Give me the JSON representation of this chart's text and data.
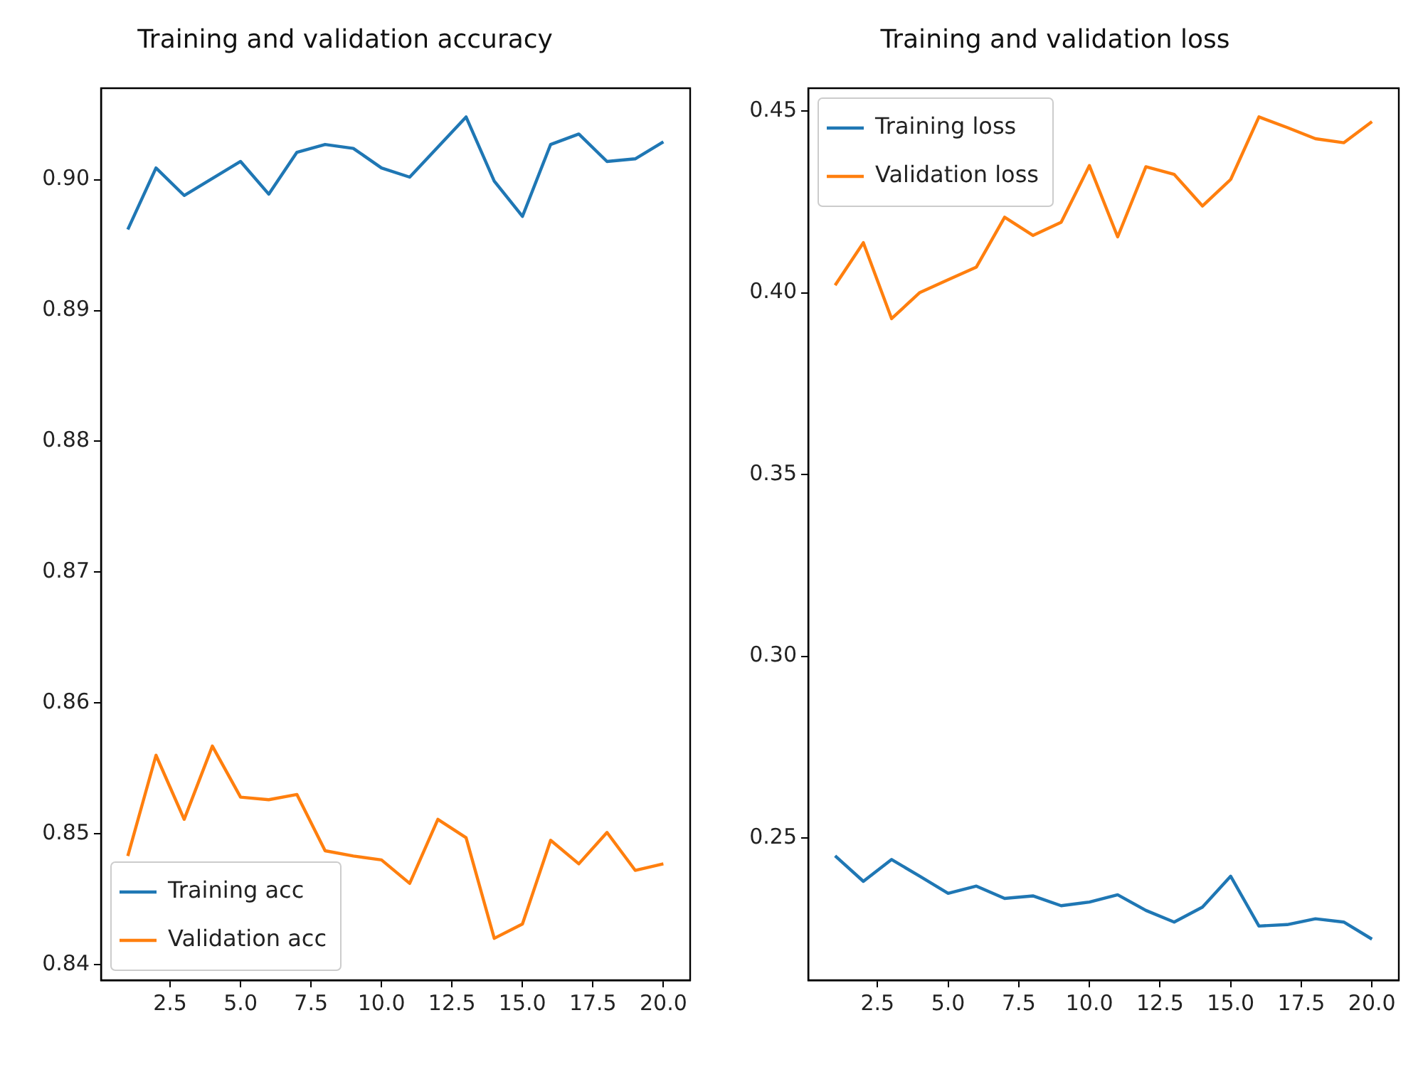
{
  "chart_data": [
    {
      "type": "line",
      "title": "Training and validation accuracy",
      "x": [
        1,
        2,
        3,
        4,
        5,
        6,
        7,
        8,
        9,
        10,
        11,
        12,
        13,
        14,
        15,
        16,
        17,
        18,
        19,
        20
      ],
      "xlim": [
        0.05,
        20.95
      ],
      "xticks": [
        2.5,
        {
          "value": 5,
          "label": "5.0"
        },
        7.5,
        {
          "value": 10,
          "label": "10.0"
        },
        12.5,
        {
          "value": 15,
          "label": "15.0"
        },
        17.5,
        {
          "value": 20,
          "label": "20.0"
        }
      ],
      "ylim": [
        0.8388,
        0.907
      ],
      "yticks": [
        0.84,
        0.85,
        0.86,
        0.87,
        0.88,
        0.89,
        {
          "value": 0.9,
          "label": "0.90"
        }
      ],
      "grid": false,
      "legend": "lower left",
      "series": [
        {
          "name": "Training acc",
          "color": "#1f77b4",
          "values": [
            0.8962,
            0.9009,
            0.8988,
            0.9001,
            0.9014,
            0.8989,
            0.9021,
            0.9027,
            0.9024,
            0.9009,
            0.9002,
            0.9025,
            0.9048,
            0.8999,
            0.8972,
            0.9027,
            0.9035,
            0.9014,
            0.9016,
            0.9029
          ]
        },
        {
          "name": "Validation acc",
          "color": "#ff7f0e",
          "values": [
            0.8483,
            0.856,
            0.8511,
            0.8567,
            0.8528,
            0.8526,
            0.853,
            0.8487,
            0.8483,
            0.848,
            0.8462,
            0.8511,
            0.8497,
            0.842,
            0.8431,
            0.8495,
            0.8477,
            0.8501,
            0.8472,
            0.8477
          ]
        }
      ]
    },
    {
      "type": "line",
      "title": "Training and validation loss",
      "x": [
        1,
        2,
        3,
        4,
        5,
        6,
        7,
        8,
        9,
        10,
        11,
        12,
        13,
        14,
        15,
        16,
        17,
        18,
        19,
        20
      ],
      "xlim": [
        0.05,
        20.95
      ],
      "xticks": [
        2.5,
        {
          "value": 5,
          "label": "5.0"
        },
        7.5,
        {
          "value": 10,
          "label": "10.0"
        },
        12.5,
        {
          "value": 15,
          "label": "15.0"
        },
        17.5,
        {
          "value": 20,
          "label": "20.0"
        }
      ],
      "ylim": [
        0.2109,
        0.4563
      ],
      "yticks": [
        0.25,
        {
          "value": 0.3,
          "label": "0.30"
        },
        0.35,
        {
          "value": 0.4,
          "label": "0.40"
        },
        0.45
      ],
      "grid": false,
      "legend": "upper left",
      "series": [
        {
          "name": "Training loss",
          "color": "#1f77b4",
          "values": [
            0.2451,
            0.2381,
            0.2441,
            0.2395,
            0.2348,
            0.2368,
            0.2334,
            0.2341,
            0.2314,
            0.2324,
            0.2344,
            0.2301,
            0.2269,
            0.231,
            0.2395,
            0.2258,
            0.2262,
            0.2278,
            0.2269,
            0.2222
          ]
        },
        {
          "name": "Validation loss",
          "color": "#ff7f0e",
          "values": [
            0.4021,
            0.4138,
            0.3929,
            0.4001,
            0.4036,
            0.4071,
            0.4208,
            0.4158,
            0.4194,
            0.435,
            0.4154,
            0.4347,
            0.4326,
            0.4239,
            0.4312,
            0.4484,
            0.4455,
            0.4424,
            0.4413,
            0.4471
          ]
        }
      ]
    }
  ]
}
